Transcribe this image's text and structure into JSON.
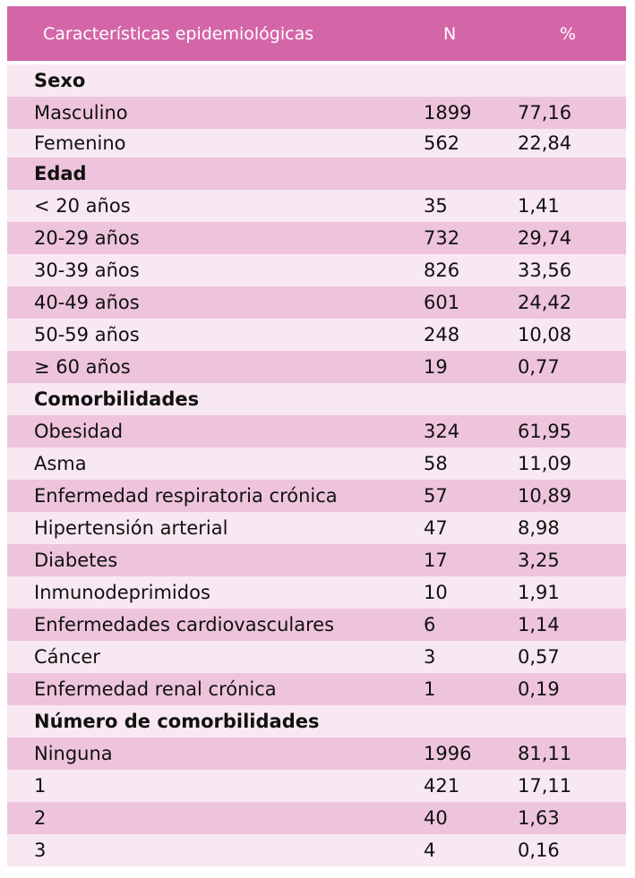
{
  "table": {
    "headers": [
      "Características epidemiológicas",
      "N",
      "%"
    ],
    "rows": [
      {
        "type": "section",
        "label": "Sexo",
        "n": "",
        "pct": ""
      },
      {
        "type": "data",
        "label": "Masculino",
        "n": "1899",
        "pct": "77,16"
      },
      {
        "type": "data",
        "label": "Femenino",
        "n": "562",
        "pct": "22,84"
      },
      {
        "type": "section",
        "label": "Edad",
        "n": "",
        "pct": ""
      },
      {
        "type": "data",
        "label": "< 20 años",
        "n": "35",
        "pct": "1,41"
      },
      {
        "type": "data",
        "label": "20-29 años",
        "n": "732",
        "pct": "29,74"
      },
      {
        "type": "data",
        "label": "30-39 años",
        "n": "826",
        "pct": "33,56"
      },
      {
        "type": "data",
        "label": "40-49 años",
        "n": "601",
        "pct": "24,42"
      },
      {
        "type": "data",
        "label": "50-59 años",
        "n": "248",
        "pct": "10,08"
      },
      {
        "type": "data",
        "label": "≥ 60 años",
        "n": "19",
        "pct": "0,77"
      },
      {
        "type": "section",
        "label": "Comorbilidades",
        "n": "",
        "pct": ""
      },
      {
        "type": "data",
        "label": "Obesidad",
        "n": "324",
        "pct": "61,95"
      },
      {
        "type": "data",
        "label": "Asma",
        "n": "58",
        "pct": "11,09"
      },
      {
        "type": "data",
        "label": "Enfermedad respiratoria crónica",
        "n": "57",
        "pct": "10,89"
      },
      {
        "type": "data",
        "label": "Hipertensión arterial",
        "n": "47",
        "pct": "8,98"
      },
      {
        "type": "data",
        "label": "Diabetes",
        "n": "17",
        "pct": "3,25"
      },
      {
        "type": "data",
        "label": "Inmunodeprimidos",
        "n": "10",
        "pct": "1,91"
      },
      {
        "type": "data",
        "label": "Enfermedades cardiovasculares",
        "n": "6",
        "pct": "1,14"
      },
      {
        "type": "data",
        "label": "Cáncer",
        "n": "3",
        "pct": "0,57"
      },
      {
        "type": "data",
        "label": "Enfermedad renal crónica",
        "n": "1",
        "pct": "0,19"
      },
      {
        "type": "section",
        "label": "Número de comorbilidades",
        "n": "",
        "pct": ""
      },
      {
        "type": "data",
        "label": "Ninguna",
        "n": "1996",
        "pct": "81,11"
      },
      {
        "type": "data",
        "label": "1",
        "n": "421",
        "pct": "17,11"
      },
      {
        "type": "data",
        "label": "2",
        "n": "40",
        "pct": "1,63"
      },
      {
        "type": "data",
        "label": "3",
        "n": "4",
        "pct": "0,16"
      }
    ]
  },
  "colors": {
    "header_bg": "#d466a8",
    "row_light": "#f8e8f1",
    "row_dark": "#eec4dc"
  }
}
